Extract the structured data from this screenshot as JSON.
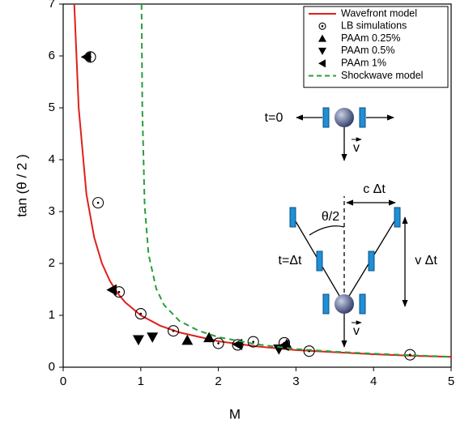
{
  "chart_data": {
    "type": "line",
    "xlabel": "M",
    "ylabel": "tan (θ / 2 )",
    "xlim": [
      0,
      5
    ],
    "ylim": [
      0,
      7
    ],
    "xticks": [
      0,
      1,
      2,
      3,
      4,
      5
    ],
    "yticks": [
      0,
      1,
      2,
      3,
      4,
      5,
      6,
      7
    ],
    "series": [
      {
        "name": "Wavefront model",
        "color": "#e0201b",
        "linestyle": "solid",
        "marker": "none",
        "x": [
          0.143,
          0.2,
          0.3,
          0.4,
          0.5,
          0.6,
          0.7,
          0.8,
          1,
          1.25,
          1.5,
          2,
          2.5,
          3,
          3.5,
          4,
          4.5,
          5
        ],
        "values": [
          7,
          5,
          3.33,
          2.5,
          2,
          1.67,
          1.43,
          1.25,
          1,
          0.8,
          0.67,
          0.5,
          0.4,
          0.33,
          0.29,
          0.25,
          0.22,
          0.2
        ]
      },
      {
        "name": "LB simulations",
        "color": "#000000",
        "linestyle": "none",
        "marker": "circle",
        "x": [
          0.35,
          0.45,
          0.72,
          1.0,
          1.42,
          2.0,
          2.25,
          2.45,
          2.85,
          3.17,
          4.47
        ],
        "values": [
          5.98,
          3.17,
          1.45,
          1.03,
          0.7,
          0.46,
          0.43,
          0.49,
          0.47,
          0.31,
          0.24
        ]
      },
      {
        "name": "PAAm 0.25%",
        "color": "#000000",
        "linestyle": "none",
        "marker": "triangle-up",
        "x": [
          1.6,
          1.88,
          2.88
        ],
        "values": [
          0.52,
          0.57,
          0.44
        ]
      },
      {
        "name": "PAAm 0.5%",
        "color": "#000000",
        "linestyle": "none",
        "marker": "triangle-down",
        "x": [
          0.97,
          1.15,
          2.78
        ],
        "values": [
          0.53,
          0.58,
          0.35
        ]
      },
      {
        "name": "PAAm 1%",
        "color": "#000000",
        "linestyle": "none",
        "marker": "triangle-left",
        "x": [
          0.3,
          0.63,
          2.25,
          2.85
        ],
        "values": [
          5.98,
          1.49,
          0.44,
          0.42
        ]
      },
      {
        "name": "Shockwave model",
        "color": "#2a9d3c",
        "linestyle": "dashed",
        "marker": "none",
        "x": [
          1.01,
          1.02,
          1.05,
          1.1,
          1.2,
          1.3,
          1.5,
          1.75,
          2,
          2.5,
          3,
          3.5,
          4,
          5
        ],
        "values": [
          7.0,
          4.97,
          3.12,
          2.18,
          1.51,
          1.2,
          0.89,
          0.7,
          0.58,
          0.44,
          0.35,
          0.3,
          0.26,
          0.2
        ]
      }
    ],
    "annotations": [
      "t=0",
      "v",
      "t=Δt",
      "θ/2",
      "c Δt",
      "v Δt",
      "v"
    ]
  }
}
